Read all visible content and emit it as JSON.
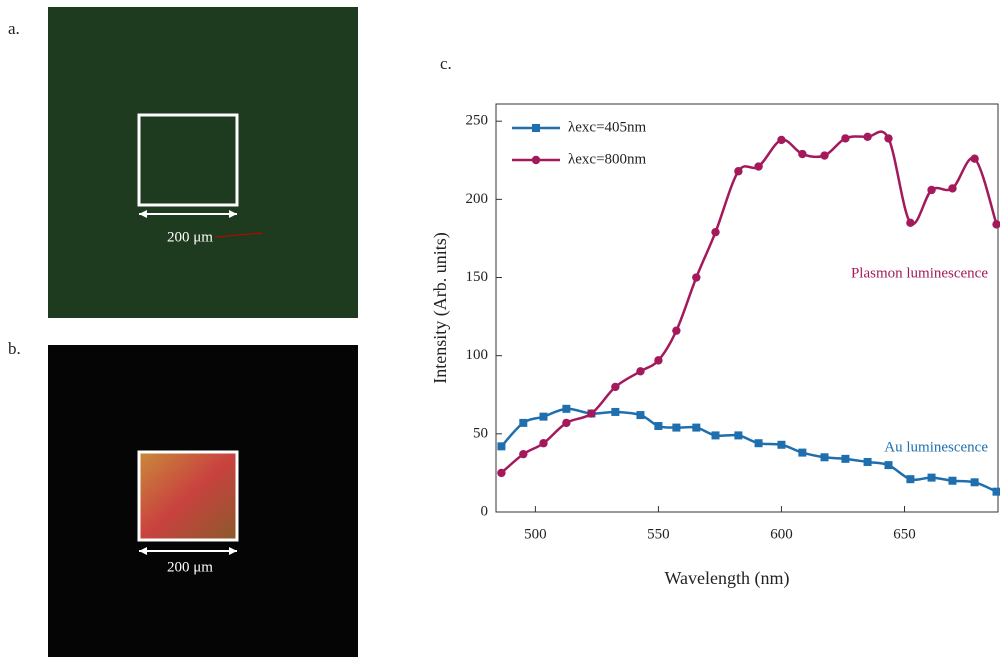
{
  "panels": {
    "a": {
      "label": "a.",
      "scale_bar": "200 μm"
    },
    "b": {
      "label": "b.",
      "scale_bar": "200 μm"
    },
    "c": {
      "label": "c."
    }
  },
  "chart_data": {
    "type": "line",
    "x_label": "Wavelength (nm)",
    "y_label": "Intensity (Arb. units)",
    "x": [
      486.2,
      495.1,
      503.3,
      512.6,
      522.8,
      532.5,
      542.7,
      550,
      557.3,
      565.4,
      573.2,
      582.5,
      590.7,
      600,
      608.5,
      617.5,
      626,
      635,
      643.5,
      652.4,
      661,
      669.5,
      678.5,
      687.4
    ],
    "series": [
      {
        "name": "λexc=405nm",
        "color": "#1f6fae",
        "marker": "square",
        "values": [
          42,
          57,
          61,
          66,
          63,
          64,
          62,
          55,
          54,
          54,
          49,
          49,
          44,
          43,
          38,
          35,
          34,
          32,
          30,
          21,
          22,
          20,
          19,
          13
        ]
      },
      {
        "name": "λexc=800nm",
        "color": "#a3195b",
        "marker": "circle",
        "values": [
          25,
          37,
          44,
          57,
          63,
          80,
          90,
          97,
          116,
          150,
          179,
          218,
          221,
          238,
          229,
          228,
          239,
          240,
          239,
          185,
          206,
          207,
          226,
          184
        ]
      }
    ],
    "annotations": [
      {
        "text": "Plasmon luminescence",
        "series": 1
      },
      {
        "text": "Au luminescence",
        "series": 0
      }
    ],
    "xlim": [
      484,
      688
    ],
    "ylim": [
      0,
      261
    ],
    "xticks": [
      500,
      550,
      600,
      650
    ],
    "yticks": [
      0,
      50,
      100,
      150,
      200,
      250
    ],
    "legend": "upper left",
    "grid": false
  }
}
